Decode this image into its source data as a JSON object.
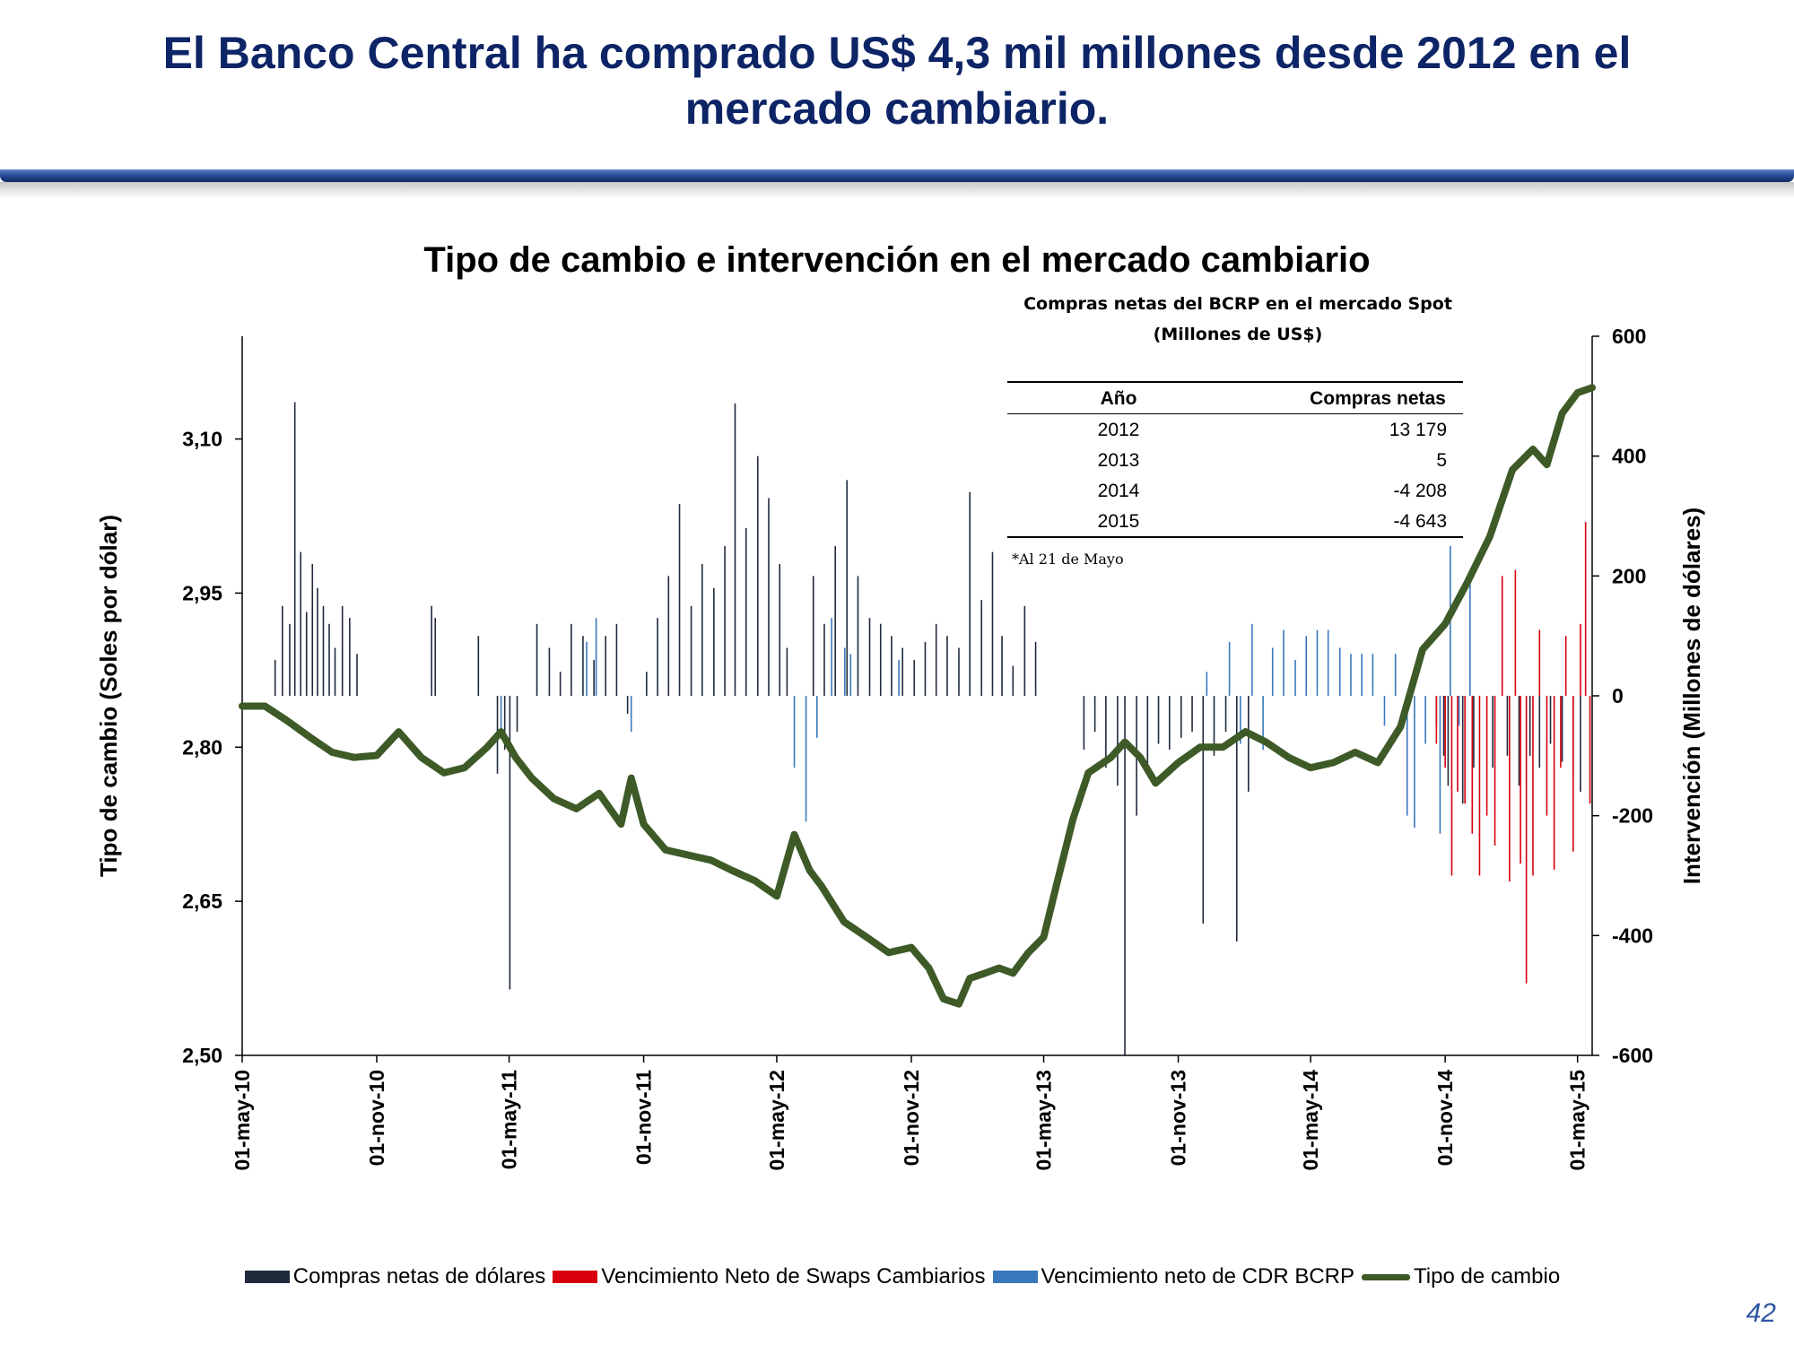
{
  "slide": {
    "title_line1": "El Banco Central ha comprado US$ 4,3 mil millones desde 2012 en el",
    "title_line2": "mercado cambiario.",
    "page_number": "42",
    "rule_color": "#1f4690"
  },
  "inset": {
    "title_line1": "Compras netas del BCRP en el mercado Spot",
    "title_line2": "(Millones de US$)",
    "headers": [
      "Año",
      "Compras netas"
    ],
    "rows": [
      {
        "year": "2012",
        "value": "13 179"
      },
      {
        "year": "2013",
        "value": "5"
      },
      {
        "year": "2014",
        "value": "-4 208"
      },
      {
        "year": "2015",
        "value": "-4 643"
      }
    ],
    "note": "*Al 21 de Mayo"
  },
  "chart_data": {
    "type": "bar+line",
    "title": "Tipo de cambio e intervención en el mercado cambiario",
    "ylabel_left": "Tipo de cambio (Soles por dólar)",
    "ylabel_right": "Intervención (Millones de dólares)",
    "y_left_range": [
      2.5,
      3.2
    ],
    "y_right_range": [
      -600,
      600
    ],
    "y_left_ticks": [
      2.5,
      2.65,
      2.8,
      2.95,
      3.1
    ],
    "y_left_tick_labels": [
      "2,50",
      "2,65",
      "2,80",
      "2,95",
      "3,10"
    ],
    "y_right_ticks": [
      -600,
      -400,
      -200,
      0,
      200,
      400,
      600
    ],
    "y_right_tick_labels": [
      "-600",
      "-400",
      "-200",
      "0",
      "200",
      "400",
      "600"
    ],
    "x_range": [
      "2010-05-01",
      "2015-05-21"
    ],
    "x_ticks": [
      "2010-05-01",
      "2010-11-01",
      "2011-05-01",
      "2011-11-01",
      "2012-05-01",
      "2012-11-01",
      "2013-05-01",
      "2013-11-01",
      "2014-05-01",
      "2014-11-01",
      "2015-05-01"
    ],
    "x_tick_labels": [
      "01-may-10",
      "01-nov-10",
      "01-may-11",
      "01-nov-11",
      "01-may-12",
      "01-nov-12",
      "01-may-13",
      "01-nov-13",
      "01-may-14",
      "01-nov-14",
      "01-may-15"
    ],
    "grid": false,
    "legend_position": "bottom",
    "series": [
      {
        "name": "Compras netas de dólares",
        "kind": "bar",
        "axis": "right",
        "color": "#1f2a3d",
        "points": [
          [
            "2010-06-15",
            60
          ],
          [
            "2010-06-25",
            150
          ],
          [
            "2010-07-05",
            120
          ],
          [
            "2010-07-12",
            490
          ],
          [
            "2010-07-20",
            240
          ],
          [
            "2010-07-28",
            140
          ],
          [
            "2010-08-05",
            220
          ],
          [
            "2010-08-12",
            180
          ],
          [
            "2010-08-20",
            150
          ],
          [
            "2010-08-28",
            120
          ],
          [
            "2010-09-05",
            80
          ],
          [
            "2010-09-15",
            150
          ],
          [
            "2010-09-25",
            130
          ],
          [
            "2010-10-05",
            70
          ],
          [
            "2011-01-15",
            150
          ],
          [
            "2011-01-20",
            130
          ],
          [
            "2011-03-20",
            100
          ],
          [
            "2011-04-15",
            -130
          ],
          [
            "2011-04-25",
            -90
          ],
          [
            "2011-05-02",
            -490
          ],
          [
            "2011-05-12",
            -60
          ],
          [
            "2011-06-08",
            120
          ],
          [
            "2011-06-25",
            80
          ],
          [
            "2011-07-10",
            40
          ],
          [
            "2011-07-25",
            120
          ],
          [
            "2011-08-10",
            100
          ],
          [
            "2011-08-25",
            60
          ],
          [
            "2011-09-10",
            100
          ],
          [
            "2011-09-25",
            120
          ],
          [
            "2011-10-10",
            -30
          ],
          [
            "2011-11-05",
            40
          ],
          [
            "2011-11-20",
            130
          ],
          [
            "2011-12-05",
            200
          ],
          [
            "2011-12-20",
            320
          ],
          [
            "2012-01-05",
            150
          ],
          [
            "2012-01-20",
            220
          ],
          [
            "2012-02-05",
            180
          ],
          [
            "2012-02-20",
            250
          ],
          [
            "2012-03-05",
            488
          ],
          [
            "2012-03-20",
            280
          ],
          [
            "2012-04-05",
            400
          ],
          [
            "2012-04-20",
            330
          ],
          [
            "2012-05-05",
            220
          ],
          [
            "2012-05-15",
            80
          ],
          [
            "2012-06-20",
            200
          ],
          [
            "2012-07-05",
            120
          ],
          [
            "2012-07-20",
            250
          ],
          [
            "2012-08-05",
            360
          ],
          [
            "2012-08-20",
            200
          ],
          [
            "2012-09-05",
            130
          ],
          [
            "2012-09-20",
            120
          ],
          [
            "2012-10-05",
            100
          ],
          [
            "2012-10-20",
            80
          ],
          [
            "2012-11-05",
            60
          ],
          [
            "2012-11-20",
            90
          ],
          [
            "2012-12-05",
            120
          ],
          [
            "2012-12-20",
            100
          ],
          [
            "2013-01-05",
            80
          ],
          [
            "2013-01-20",
            340
          ],
          [
            "2013-02-05",
            160
          ],
          [
            "2013-02-20",
            240
          ],
          [
            "2013-03-05",
            100
          ],
          [
            "2013-03-20",
            50
          ],
          [
            "2013-04-05",
            150
          ],
          [
            "2013-04-20",
            90
          ],
          [
            "2013-06-25",
            -90
          ],
          [
            "2013-07-10",
            -60
          ],
          [
            "2013-07-25",
            -120
          ],
          [
            "2013-08-10",
            -150
          ],
          [
            "2013-08-20",
            -600
          ],
          [
            "2013-09-05",
            -200
          ],
          [
            "2013-09-20",
            -120
          ],
          [
            "2013-10-05",
            -80
          ],
          [
            "2013-10-20",
            -90
          ],
          [
            "2013-11-05",
            -70
          ],
          [
            "2013-11-20",
            -60
          ],
          [
            "2013-12-05",
            -380
          ],
          [
            "2013-12-20",
            -100
          ],
          [
            "2014-01-05",
            -60
          ],
          [
            "2014-01-20",
            -410
          ],
          [
            "2014-02-05",
            -160
          ],
          [
            "2014-10-20",
            -50
          ],
          [
            "2014-10-30",
            -100
          ],
          [
            "2014-11-05",
            -150
          ],
          [
            "2014-11-25",
            -180
          ],
          [
            "2014-12-10",
            -120
          ],
          [
            "2015-01-05",
            -120
          ],
          [
            "2015-01-25",
            -100
          ],
          [
            "2015-02-10",
            -150
          ],
          [
            "2015-02-25",
            -100
          ],
          [
            "2015-03-10",
            -120
          ],
          [
            "2015-03-25",
            -80
          ],
          [
            "2015-04-10",
            -110
          ],
          [
            "2015-04-25",
            -130
          ],
          [
            "2015-05-05",
            -160
          ]
        ]
      },
      {
        "name": "Vencimiento Neto de Swaps Cambiarios",
        "kind": "bar",
        "axis": "right",
        "color": "#d8000c",
        "points": [
          [
            "2014-10-20",
            -80
          ],
          [
            "2014-11-01",
            -120
          ],
          [
            "2014-11-10",
            -300
          ],
          [
            "2014-11-18",
            -160
          ],
          [
            "2014-11-28",
            -180
          ],
          [
            "2014-12-08",
            -230
          ],
          [
            "2014-12-18",
            -300
          ],
          [
            "2014-12-28",
            -200
          ],
          [
            "2015-01-08",
            -250
          ],
          [
            "2015-01-18",
            200
          ],
          [
            "2015-01-28",
            -310
          ],
          [
            "2015-02-05",
            210
          ],
          [
            "2015-02-12",
            -280
          ],
          [
            "2015-02-20",
            -480
          ],
          [
            "2015-03-01",
            -300
          ],
          [
            "2015-03-10",
            110
          ],
          [
            "2015-03-20",
            -200
          ],
          [
            "2015-03-30",
            -290
          ],
          [
            "2015-04-08",
            -120
          ],
          [
            "2015-04-15",
            100
          ],
          [
            "2015-04-25",
            -260
          ],
          [
            "2015-05-05",
            120
          ],
          [
            "2015-05-12",
            290
          ],
          [
            "2015-05-18",
            -180
          ]
        ]
      },
      {
        "name": "Vencimiento neto de CDR BCRP",
        "kind": "bar",
        "axis": "right",
        "color": "#3a78bd",
        "points": [
          [
            "2011-04-20",
            -60
          ],
          [
            "2011-08-15",
            90
          ],
          [
            "2011-08-28",
            130
          ],
          [
            "2011-10-15",
            -60
          ],
          [
            "2012-05-25",
            -120
          ],
          [
            "2012-06-10",
            -210
          ],
          [
            "2012-06-25",
            -70
          ],
          [
            "2012-07-15",
            130
          ],
          [
            "2012-08-02",
            80
          ],
          [
            "2012-08-10",
            70
          ],
          [
            "2012-10-15",
            60
          ],
          [
            "2013-12-10",
            40
          ],
          [
            "2014-01-10",
            90
          ],
          [
            "2014-01-25",
            -80
          ],
          [
            "2014-02-10",
            120
          ],
          [
            "2014-02-25",
            -90
          ],
          [
            "2014-03-10",
            80
          ],
          [
            "2014-03-25",
            110
          ],
          [
            "2014-04-10",
            60
          ],
          [
            "2014-04-25",
            100
          ],
          [
            "2014-05-10",
            110
          ],
          [
            "2014-05-25",
            110
          ],
          [
            "2014-06-10",
            80
          ],
          [
            "2014-06-25",
            70
          ],
          [
            "2014-07-10",
            70
          ],
          [
            "2014-07-25",
            70
          ],
          [
            "2014-08-10",
            -50
          ],
          [
            "2014-08-25",
            70
          ],
          [
            "2014-09-10",
            -200
          ],
          [
            "2014-09-20",
            -220
          ],
          [
            "2014-10-05",
            -80
          ],
          [
            "2014-10-25",
            -230
          ],
          [
            "2014-11-08",
            250
          ],
          [
            "2014-11-20",
            -50
          ],
          [
            "2014-12-05",
            200
          ]
        ]
      },
      {
        "name": "Tipo de cambio",
        "kind": "line",
        "axis": "left",
        "color": "#3d5a27",
        "points": [
          [
            "2010-05-01",
            2.84
          ],
          [
            "2010-06-01",
            2.84
          ],
          [
            "2010-07-01",
            2.826
          ],
          [
            "2010-08-01",
            2.81
          ],
          [
            "2010-09-01",
            2.795
          ],
          [
            "2010-10-01",
            2.79
          ],
          [
            "2010-11-01",
            2.792
          ],
          [
            "2010-12-01",
            2.815
          ],
          [
            "2011-01-01",
            2.79
          ],
          [
            "2011-02-01",
            2.775
          ],
          [
            "2011-03-01",
            2.78
          ],
          [
            "2011-04-01",
            2.8
          ],
          [
            "2011-04-20",
            2.815
          ],
          [
            "2011-05-10",
            2.79
          ],
          [
            "2011-06-01",
            2.77
          ],
          [
            "2011-07-01",
            2.75
          ],
          [
            "2011-08-01",
            2.74
          ],
          [
            "2011-09-01",
            2.755
          ],
          [
            "2011-10-01",
            2.725
          ],
          [
            "2011-10-15",
            2.77
          ],
          [
            "2011-11-01",
            2.725
          ],
          [
            "2011-12-01",
            2.7
          ],
          [
            "2012-01-01",
            2.695
          ],
          [
            "2012-02-01",
            2.69
          ],
          [
            "2012-03-01",
            2.68
          ],
          [
            "2012-04-01",
            2.67
          ],
          [
            "2012-05-01",
            2.655
          ],
          [
            "2012-05-25",
            2.715
          ],
          [
            "2012-06-15",
            2.68
          ],
          [
            "2012-07-01",
            2.665
          ],
          [
            "2012-08-01",
            2.63
          ],
          [
            "2012-09-01",
            2.615
          ],
          [
            "2012-10-01",
            2.6
          ],
          [
            "2012-11-01",
            2.605
          ],
          [
            "2012-11-25",
            2.585
          ],
          [
            "2012-12-15",
            2.555
          ],
          [
            "2013-01-05",
            2.55
          ],
          [
            "2013-01-20",
            2.575
          ],
          [
            "2013-02-10",
            2.58
          ],
          [
            "2013-03-01",
            2.585
          ],
          [
            "2013-03-20",
            2.58
          ],
          [
            "2013-04-10",
            2.6
          ],
          [
            "2013-05-01",
            2.615
          ],
          [
            "2013-05-20",
            2.67
          ],
          [
            "2013-06-10",
            2.73
          ],
          [
            "2013-07-01",
            2.775
          ],
          [
            "2013-08-01",
            2.79
          ],
          [
            "2013-08-20",
            2.805
          ],
          [
            "2013-09-10",
            2.79
          ],
          [
            "2013-10-01",
            2.765
          ],
          [
            "2013-11-01",
            2.785
          ],
          [
            "2013-12-01",
            2.8
          ],
          [
            "2014-01-01",
            2.8
          ],
          [
            "2014-02-01",
            2.815
          ],
          [
            "2014-03-01",
            2.805
          ],
          [
            "2014-04-01",
            2.79
          ],
          [
            "2014-05-01",
            2.78
          ],
          [
            "2014-06-01",
            2.785
          ],
          [
            "2014-07-01",
            2.795
          ],
          [
            "2014-08-01",
            2.785
          ],
          [
            "2014-09-01",
            2.82
          ],
          [
            "2014-10-01",
            2.895
          ],
          [
            "2014-11-01",
            2.92
          ],
          [
            "2014-12-01",
            2.96
          ],
          [
            "2015-01-01",
            3.005
          ],
          [
            "2015-02-01",
            3.07
          ],
          [
            "2015-03-01",
            3.09
          ],
          [
            "2015-03-20",
            3.075
          ],
          [
            "2015-04-10",
            3.125
          ],
          [
            "2015-05-01",
            3.145
          ],
          [
            "2015-05-21",
            3.15
          ]
        ]
      }
    ]
  }
}
